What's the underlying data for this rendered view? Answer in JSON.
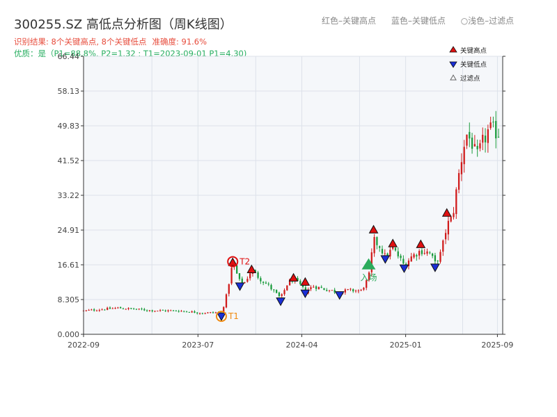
{
  "header": {
    "title": "300255.SZ 高低点分析图（周K线图）",
    "legend_items": [
      "红色–关键高点",
      "蓝色–关键低点",
      "○浅色–过滤点"
    ],
    "result_text": "识别结果: 8个关键高点, 8个关键低点",
    "accuracy_text": "准确度: 91.6%",
    "quality_text": "优质：是（P1=88.8%, P2=1.32 ; T1=2023-09-01 P1=4.30)"
  },
  "colors": {
    "up": "#d01b1b",
    "down": "#1a9b3c",
    "high_marker": "#e01010",
    "low_marker": "#1a2fd6",
    "entry_marker": "#2bab5b",
    "t_marker": "#f08a0f",
    "plot_bg": "#f5f7fa",
    "grid": "#dde2ea",
    "axis": "#333333"
  },
  "chart_data": {
    "type": "candlestick",
    "title": "300255.SZ 高低点分析图（周K线图）",
    "x_ticks": [
      "2022-09",
      "2023-07",
      "2024-04",
      "2025-01",
      "2025-09"
    ],
    "y_ticks": [
      "0.000",
      "8.305",
      "16.61",
      "24.91",
      "33.22",
      "41.52",
      "49.83",
      "58.13",
      "66.44"
    ],
    "ylim": [
      0,
      66.44
    ],
    "xlim": [
      "2022-09-01",
      "2025-09-15"
    ],
    "legend": {
      "placement": "top-right",
      "entries": [
        {
          "label": "关键高点",
          "marker": "triangle-up",
          "color": "#e01010"
        },
        {
          "label": "关键低点",
          "marker": "triangle-down",
          "color": "#1a2fd6"
        },
        {
          "label": "过滤点",
          "marker": "triangle-up-hollow",
          "color": "#666666"
        }
      ]
    },
    "anchors": [
      [
        "2022-09-01",
        5.6
      ],
      [
        "2022-12-01",
        6.3
      ],
      [
        "2023-03-01",
        5.7
      ],
      [
        "2023-05-15",
        5.6
      ],
      [
        "2023-07-15",
        5.1
      ],
      [
        "2023-08-20",
        5.2
      ],
      [
        "2023-09-01",
        4.8
      ],
      [
        "2023-09-15",
        9.5
      ],
      [
        "2023-10-01",
        17.0
      ],
      [
        "2023-10-20",
        12.5
      ],
      [
        "2023-11-01",
        12.2
      ],
      [
        "2023-11-20",
        15.5
      ],
      [
        "2023-12-10",
        13.5
      ],
      [
        "2024-01-05",
        11.5
      ],
      [
        "2024-02-05",
        8.6
      ],
      [
        "2024-02-25",
        12.5
      ],
      [
        "2024-03-10",
        13.2
      ],
      [
        "2024-03-30",
        11.5
      ],
      [
        "2024-04-10",
        10.2
      ],
      [
        "2024-05-01",
        11.5
      ],
      [
        "2024-06-01",
        10.8
      ],
      [
        "2024-07-10",
        10.0
      ],
      [
        "2024-08-01",
        10.5
      ],
      [
        "2024-09-05",
        10.4
      ],
      [
        "2024-09-25",
        13.5
      ],
      [
        "2024-10-08",
        22.5
      ],
      [
        "2024-10-25",
        21.0
      ],
      [
        "2024-11-08",
        18.5
      ],
      [
        "2024-11-28",
        20.5
      ],
      [
        "2024-12-10",
        19.0
      ],
      [
        "2024-12-28",
        16.5
      ],
      [
        "2025-01-15",
        18.5
      ],
      [
        "2025-02-10",
        20.0
      ],
      [
        "2025-03-05",
        19.5
      ],
      [
        "2025-03-20",
        17.0
      ],
      [
        "2025-04-05",
        19.5
      ],
      [
        "2025-04-20",
        26.0
      ],
      [
        "2025-05-05",
        28.0
      ],
      [
        "2025-05-25",
        40.0
      ],
      [
        "2025-06-10",
        48.0
      ],
      [
        "2025-06-25",
        46.0
      ],
      [
        "2025-07-08",
        42.0
      ],
      [
        "2025-07-25",
        46.0
      ],
      [
        "2025-08-10",
        49.0
      ],
      [
        "2025-09-10",
        48.0
      ]
    ],
    "key_highs": [
      {
        "date": "2023-10-01",
        "value": 17.2,
        "label": "T2"
      },
      {
        "date": "2023-11-20",
        "value": 15.5
      },
      {
        "date": "2024-03-10",
        "value": 13.5
      },
      {
        "date": "2024-04-10",
        "value": 12.5
      },
      {
        "date": "2024-10-08",
        "value": 25.0
      },
      {
        "date": "2024-11-28",
        "value": 21.7
      },
      {
        "date": "2025-02-10",
        "value": 21.5
      },
      {
        "date": "2025-04-20",
        "value": 29.0
      }
    ],
    "key_lows": [
      {
        "date": "2023-09-01",
        "value": 4.3,
        "label": "T1"
      },
      {
        "date": "2023-10-20",
        "value": 11.5
      },
      {
        "date": "2024-02-05",
        "value": 7.9
      },
      {
        "date": "2024-04-10",
        "value": 9.8
      },
      {
        "date": "2024-07-10",
        "value": 9.4
      },
      {
        "date": "2024-11-08",
        "value": 18.0
      },
      {
        "date": "2024-12-28",
        "value": 15.8
      },
      {
        "date": "2025-03-20",
        "value": 16.0
      }
    ],
    "entry": {
      "date": "2024-09-25",
      "value": 16.5,
      "label": "入场"
    }
  }
}
